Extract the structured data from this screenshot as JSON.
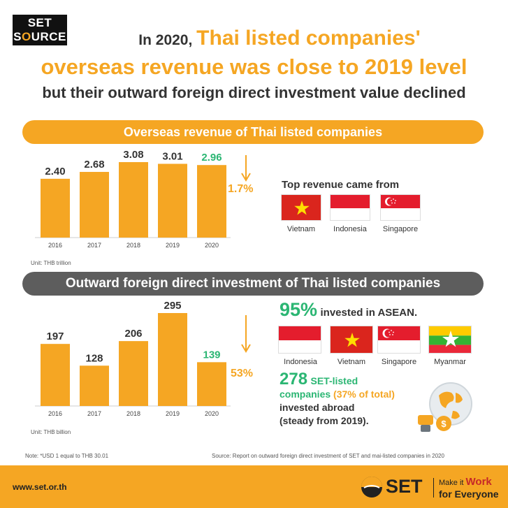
{
  "header": {
    "logo_line1": "SET",
    "logo_line2_a": "S",
    "logo_line2_b": "O",
    "logo_line2_c": "URCE",
    "title_prefix": "In 2020,",
    "title_accent": "Thai listed companies'",
    "title_line2": "overseas revenue was close to 2019 level",
    "title_line3": "but their outward foreign direct investment value declined"
  },
  "section1": {
    "banner": "Overseas revenue of Thai listed companies",
    "unit": "Unit: THB trillion",
    "change": "1.7%",
    "top_label": "Top revenue came from",
    "countries": [
      "Vietnam",
      "Indonesia",
      "Singapore"
    ]
  },
  "section2": {
    "banner": "Outward foreign direct investment of Thai listed companies",
    "unit": "Unit: THB billion",
    "change": "53%",
    "asean_pct": "95%",
    "asean_text": "invested in ASEAN.",
    "countries": [
      "Indonesia",
      "Vietnam",
      "Singapore",
      "Myanmar"
    ],
    "companies_num": "278",
    "companies_text1": "SET-listed",
    "companies_text2": "companies",
    "companies_pct": "(37% of total)",
    "companies_text3": "invested abroad",
    "companies_text4": "(steady from 2019)."
  },
  "notes": {
    "left": "Note: *USD 1 equal to THB 30.01",
    "right": "Source: Report on outward foreign direct investment of SET and mai-listed companies in 2020"
  },
  "footer": {
    "site": "www.set.or.th",
    "brand": "SET",
    "slogan1_a": "Make it ",
    "slogan1_b": "Work",
    "slogan2": "for Everyone"
  },
  "colors": {
    "orange": "#f5a623",
    "green": "#2bb673",
    "gray": "#5d5d5d"
  },
  "chart_data": [
    {
      "type": "bar",
      "categories": [
        "2016",
        "2017",
        "2018",
        "2019",
        "2020"
      ],
      "values": [
        2.4,
        2.68,
        3.08,
        3.01,
        2.96
      ],
      "labels": [
        "2.40",
        "2.68",
        "3.08",
        "3.01",
        "2.96"
      ],
      "highlight_index": 4,
      "ylim": [
        0,
        3.08
      ]
    },
    {
      "type": "bar",
      "categories": [
        "2016",
        "2017",
        "2018",
        "2019",
        "2020"
      ],
      "values": [
        197,
        128,
        206,
        295,
        139
      ],
      "labels": [
        "197",
        "128",
        "206",
        "295",
        "139"
      ],
      "highlight_index": 4,
      "ylim": [
        0,
        295
      ]
    }
  ]
}
